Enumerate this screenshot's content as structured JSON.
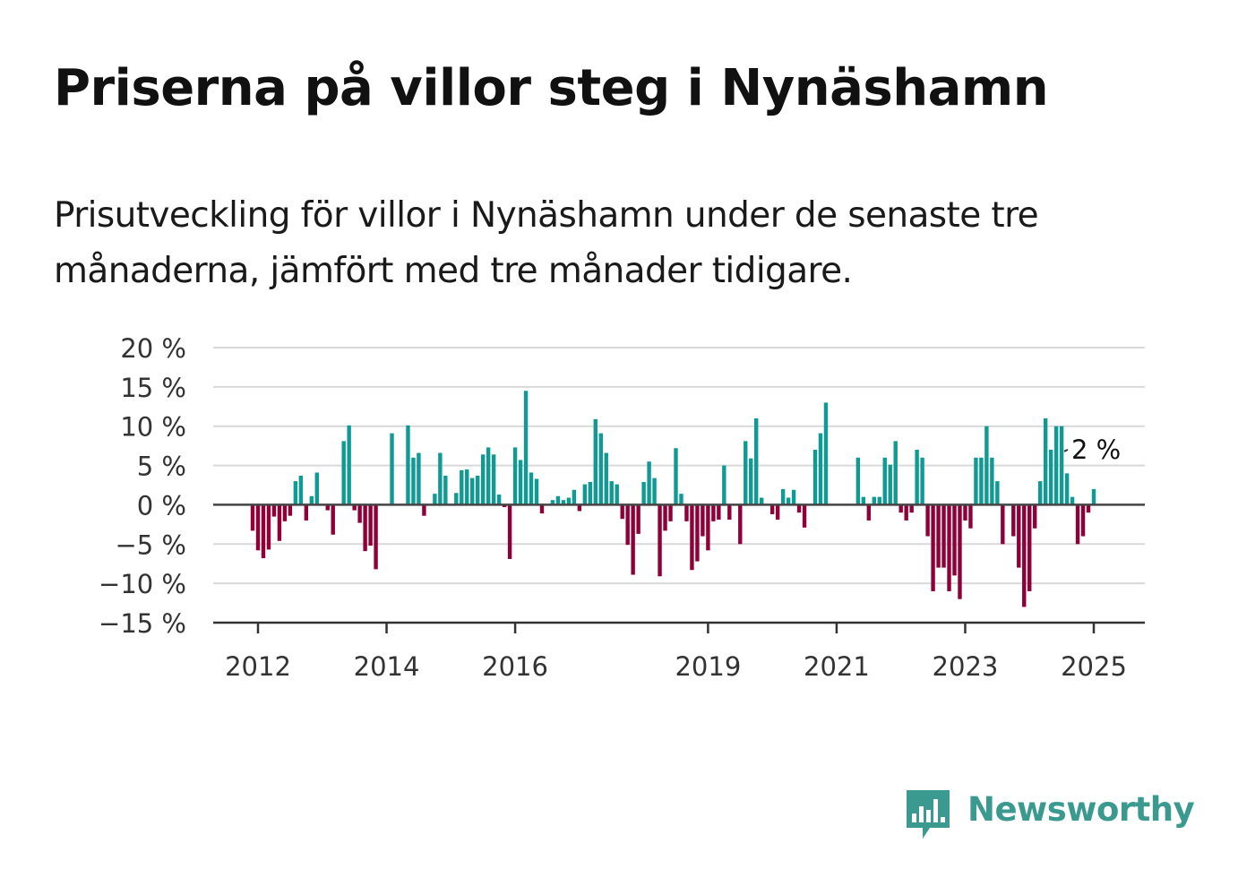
{
  "title": "Priserna på villor steg i Nynäshamn",
  "subtitle": "Prisutveckling för villor i Nynäshamn under de senaste tre månaderna, jämfört med tre månader tidigare.",
  "logo": {
    "text": "Newsworthy",
    "icon": "newsworthy-chart-icon"
  },
  "colors": {
    "positive": "#0f9a94",
    "negative": "#8f0038",
    "grid": "#d9d9d9",
    "axis": "#333333"
  },
  "chart_data": {
    "type": "bar",
    "unit": "%",
    "ylim": [
      -15,
      20
    ],
    "yticks": [
      20,
      15,
      10,
      5,
      0,
      -5,
      -10,
      -15
    ],
    "ytick_labels": [
      "20 %",
      "15 %",
      "10 %",
      "5 %",
      "0 %",
      "−5 %",
      "−10 %",
      "−15 %"
    ],
    "xtick_labels": [
      "2012",
      "2014",
      "2016",
      "2019",
      "2021",
      "2023",
      "2025"
    ],
    "xtick_positions": [
      "2012-01",
      "2014-01",
      "2016-01",
      "2019-01",
      "2021-01",
      "2023-01",
      "2025-01"
    ],
    "annotation": {
      "text": "2 %",
      "month": "2025-01"
    },
    "grid": true,
    "months": [
      "2011-12",
      "2012-01",
      "2012-02",
      "2012-03",
      "2012-04",
      "2012-05",
      "2012-06",
      "2012-07",
      "2012-08",
      "2012-09",
      "2012-10",
      "2012-11",
      "2012-12",
      "2013-01",
      "2013-02",
      "2013-03",
      "2013-04",
      "2013-05",
      "2013-06",
      "2013-07",
      "2013-08",
      "2013-09",
      "2013-10",
      "2013-11",
      "2013-12",
      "2014-01",
      "2014-02",
      "2014-03",
      "2014-04",
      "2014-05",
      "2014-06",
      "2014-07",
      "2014-08",
      "2014-09",
      "2014-10",
      "2014-11",
      "2014-12",
      "2015-01",
      "2015-02",
      "2015-03",
      "2015-04",
      "2015-05",
      "2015-06",
      "2015-07",
      "2015-08",
      "2015-09",
      "2015-10",
      "2015-11",
      "2015-12",
      "2016-01",
      "2016-02",
      "2016-03",
      "2016-04",
      "2016-05",
      "2016-06",
      "2016-07",
      "2016-08",
      "2016-09",
      "2016-10",
      "2016-11",
      "2016-12",
      "2017-01",
      "2017-02",
      "2017-03",
      "2017-04",
      "2017-05",
      "2017-06",
      "2017-07",
      "2017-08",
      "2017-09",
      "2017-10",
      "2017-11",
      "2017-12",
      "2018-01",
      "2018-02",
      "2018-03",
      "2018-04",
      "2018-05",
      "2018-06",
      "2018-07",
      "2018-08",
      "2018-09",
      "2018-10",
      "2018-11",
      "2018-12",
      "2019-01",
      "2019-02",
      "2019-03",
      "2019-04",
      "2019-05",
      "2019-06",
      "2019-07",
      "2019-08",
      "2019-09",
      "2019-10",
      "2019-11",
      "2019-12",
      "2020-01",
      "2020-02",
      "2020-03",
      "2020-04",
      "2020-05",
      "2020-06",
      "2020-07",
      "2020-08",
      "2020-09",
      "2020-10",
      "2020-11",
      "2020-12",
      "2021-01",
      "2021-02",
      "2021-03",
      "2021-04",
      "2021-05",
      "2021-06",
      "2021-07",
      "2021-08",
      "2021-09",
      "2021-10",
      "2021-11",
      "2021-12",
      "2022-01",
      "2022-02",
      "2022-03",
      "2022-04",
      "2022-05",
      "2022-06",
      "2022-07",
      "2022-08",
      "2022-09",
      "2022-10",
      "2022-11",
      "2022-12",
      "2023-01",
      "2023-02",
      "2023-03",
      "2023-04",
      "2023-05",
      "2023-06",
      "2023-07",
      "2023-08",
      "2023-09",
      "2023-10",
      "2023-11",
      "2023-12",
      "2024-01",
      "2024-02",
      "2024-03",
      "2024-04",
      "2024-05",
      "2024-06",
      "2024-07",
      "2024-08",
      "2024-09",
      "2024-10",
      "2024-11",
      "2024-12",
      "2025-01"
    ],
    "values": [
      -3.3,
      -5.8,
      -6.8,
      -5.7,
      -1.5,
      -4.6,
      -2.1,
      -1.4,
      3.0,
      3.7,
      -2.0,
      1.1,
      4.1,
      0,
      -0.7,
      -3.8,
      0,
      8.1,
      10.1,
      -0.7,
      -2.3,
      -5.9,
      -5.2,
      -8.2,
      0,
      0,
      9.1,
      0,
      0,
      10.1,
      6.0,
      6.6,
      -1.4,
      0,
      1.4,
      6.6,
      3.7,
      0,
      1.5,
      4.4,
      4.5,
      3.4,
      3.7,
      6.4,
      7.3,
      6.4,
      1.3,
      -0.3,
      -6.9,
      7.3,
      5.7,
      14.5,
      4.1,
      3.3,
      -1.1,
      0,
      0.6,
      1.1,
      0.6,
      0.9,
      1.9,
      -0.8,
      2.6,
      2.9,
      10.9,
      9.1,
      6.6,
      3.0,
      2.6,
      -1.8,
      -5.1,
      -8.9,
      -3.7,
      2.9,
      5.5,
      3.4,
      -9.1,
      -3.3,
      -2.1,
      7.2,
      1.4,
      -2.1,
      -8.3,
      -7.2,
      -4.0,
      -5.8,
      -2.1,
      -1.9,
      5.0,
      -1.9,
      0,
      -5.0,
      8.1,
      5.9,
      11.0,
      0.9,
      0,
      -1.2,
      -1.9,
      2.0,
      0.9,
      1.9,
      -1.0,
      -2.9,
      0,
      7.0,
      9.1,
      13.0,
      0,
      0,
      0,
      0,
      0,
      6.0,
      1.0,
      -2.0,
      1.0,
      1.0,
      6.0,
      5.1,
      8.1,
      -1.0,
      -2.0,
      -1.0,
      7.0,
      6.0,
      -4.0,
      -11.0,
      -8.0,
      -8.0,
      -11.0,
      -9.0,
      -12.0,
      -2.0,
      -3.0,
      6.0,
      6.0,
      10.0,
      6.0,
      3.0,
      -5.0,
      0,
      -4.0,
      -8.0,
      -13.0,
      -11.0,
      -3.0,
      3.0,
      11.0,
      7.0,
      10.0,
      10.0,
      4.0,
      1.0,
      -5.0,
      -4.0,
      -1.0,
      2.0
    ]
  }
}
